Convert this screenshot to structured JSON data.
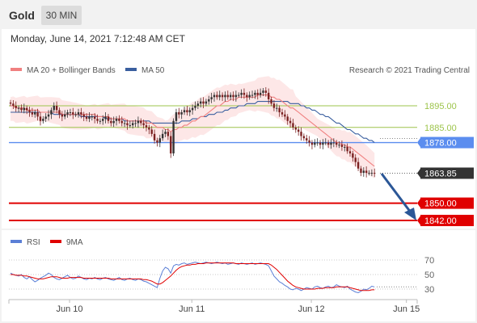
{
  "header": {
    "title": "Gold",
    "timeframe": "30 MIN"
  },
  "timestamp": "Monday, June 14, 2021 7:12:48 AM CET",
  "legend": {
    "bollinger": "MA 20 + Bollinger Bands",
    "ma50": "MA 50",
    "credit": "Research © 2021 Trading Central",
    "rsi": "RSI",
    "ma9": "9MA"
  },
  "colors": {
    "bollinger": "#f08080",
    "band_fill": "#fde3e3",
    "ma50": "#3a5f9f",
    "resistance": "#9dc44b",
    "pivot": "#5b8def",
    "support": "#e00000",
    "current": "#333333",
    "arrow": "#2b5797",
    "candle_up": "#333333",
    "candle_down": "#7b2222"
  },
  "levels": [
    {
      "label": "1895.00",
      "value": 1895.0,
      "kind": "resistance"
    },
    {
      "label": "1885.00",
      "value": 1885.0,
      "kind": "resistance"
    },
    {
      "label": "1878.00",
      "value": 1878.0,
      "kind": "pivot"
    },
    {
      "label": "1863.85",
      "value": 1863.85,
      "kind": "current"
    },
    {
      "label": "1850.00",
      "value": 1850.0,
      "kind": "support"
    },
    {
      "label": "1842.00",
      "value": 1842.0,
      "kind": "support"
    }
  ],
  "chart_data": [
    {
      "type": "line",
      "title": "Gold",
      "ylim": [
        1838,
        1912
      ],
      "x_tick_labels": [
        "Jun 10",
        "Jun 11",
        "Jun 12",
        "Jun 15"
      ],
      "x_ticks": [
        14,
        59,
        103,
        138
      ],
      "x_range": [
        0,
        150
      ],
      "series": [
        {
          "name": "Close",
          "values": [
            1896,
            1895,
            1894,
            1894,
            1893,
            1894,
            1893,
            1892,
            1891,
            1892,
            1890,
            1888,
            1889,
            1890,
            1891,
            1893,
            1895,
            1893,
            1891,
            1890,
            1891,
            1892,
            1892,
            1891,
            1891,
            1892,
            1891,
            1890,
            1889,
            1890,
            1890,
            1889,
            1888,
            1888,
            1889,
            1890,
            1888,
            1887,
            1888,
            1889,
            1888,
            1887,
            1887,
            1886,
            1886,
            1887,
            1887,
            1888,
            1887,
            1886,
            1885,
            1884,
            1882,
            1879,
            1878,
            1880,
            1882,
            1883,
            1881,
            1873,
            1888,
            1892,
            1891,
            1892,
            1893,
            1892,
            1893,
            1894,
            1895,
            1896,
            1897,
            1896,
            1897,
            1898,
            1899,
            1900,
            1899,
            1900,
            1899,
            1900,
            1899,
            1900,
            1899,
            1900,
            1900,
            1901,
            1900,
            1899,
            1900,
            1900,
            1901,
            1900,
            1901,
            1902,
            1901,
            1898,
            1896,
            1894,
            1894,
            1892,
            1891,
            1890,
            1888,
            1887,
            1885,
            1884,
            1883,
            1881,
            1880,
            1879,
            1878,
            1877,
            1878,
            1878,
            1877,
            1878,
            1878,
            1877,
            1878,
            1878,
            1877,
            1877,
            1876,
            1876,
            1874,
            1873,
            1871,
            1869,
            1866,
            1864,
            1865,
            1864,
            1864,
            1864,
            1863.85
          ]
        },
        {
          "name": "MA 20",
          "values": [
            1895,
            1895,
            1894,
            1894,
            1894,
            1894,
            1893,
            1893,
            1893,
            1893,
            1893,
            1892,
            1892,
            1892,
            1892,
            1892,
            1892,
            1892,
            1892,
            1891,
            1891,
            1891,
            1891,
            1891,
            1891,
            1891,
            1891,
            1891,
            1891,
            1891,
            1891,
            1891,
            1890,
            1890,
            1890,
            1890,
            1890,
            1889,
            1889,
            1889,
            1889,
            1889,
            1889,
            1888,
            1888,
            1888,
            1888,
            1888,
            1888,
            1888,
            1887,
            1887,
            1887,
            1886,
            1885,
            1885,
            1885,
            1884,
            1884,
            1883,
            1884,
            1884,
            1885,
            1885,
            1886,
            1886,
            1887,
            1888,
            1888,
            1889,
            1890,
            1890,
            1891,
            1892,
            1893,
            1894,
            1895,
            1895,
            1896,
            1897,
            1897,
            1898,
            1898,
            1898,
            1899,
            1899,
            1899,
            1899,
            1899,
            1899,
            1899,
            1900,
            1900,
            1900,
            1900,
            1900,
            1899,
            1899,
            1898,
            1898,
            1897,
            1896,
            1895,
            1894,
            1894,
            1893,
            1892,
            1891,
            1890,
            1889,
            1888,
            1887,
            1886,
            1885,
            1884,
            1883,
            1882,
            1881,
            1880,
            1879,
            1878,
            1878,
            1877,
            1877,
            1876,
            1876,
            1875,
            1874,
            1873,
            1872,
            1871,
            1870,
            1869,
            1868,
            1867
          ]
        },
        {
          "name": "MA 50",
          "values": [
            1892,
            1892,
            1892,
            1892,
            1892,
            1892,
            1892,
            1892,
            1892,
            1892,
            1892,
            1892,
            1892,
            1892,
            1892,
            1892,
            1891,
            1891,
            1891,
            1891,
            1891,
            1891,
            1891,
            1891,
            1891,
            1891,
            1890,
            1890,
            1890,
            1890,
            1890,
            1890,
            1890,
            1890,
            1890,
            1889,
            1889,
            1889,
            1889,
            1889,
            1889,
            1889,
            1888,
            1888,
            1888,
            1888,
            1888,
            1888,
            1888,
            1888,
            1888,
            1888,
            1887,
            1887,
            1887,
            1887,
            1887,
            1887,
            1887,
            1887,
            1887,
            1887,
            1887,
            1888,
            1888,
            1888,
            1888,
            1889,
            1889,
            1889,
            1890,
            1890,
            1890,
            1891,
            1891,
            1891,
            1892,
            1892,
            1892,
            1893,
            1893,
            1894,
            1894,
            1894,
            1895,
            1895,
            1895,
            1896,
            1896,
            1896,
            1896,
            1897,
            1897,
            1897,
            1897,
            1897,
            1897,
            1897,
            1897,
            1897,
            1897,
            1897,
            1897,
            1896,
            1896,
            1896,
            1896,
            1895,
            1895,
            1894,
            1894,
            1893,
            1893,
            1892,
            1891,
            1891,
            1890,
            1890,
            1889,
            1888,
            1887,
            1887,
            1886,
            1885,
            1884,
            1884,
            1883,
            1882,
            1882,
            1881,
            1880,
            1880,
            1879,
            1879,
            1878
          ]
        }
      ]
    },
    {
      "type": "line",
      "title": "RSI",
      "ylim": [
        20,
        80
      ],
      "y_ticks": [
        70,
        50,
        30
      ],
      "series": [
        {
          "name": "RSI",
          "values": [
            52,
            50,
            49,
            48,
            50,
            46,
            44,
            47,
            43,
            40,
            42,
            45,
            47,
            49,
            52,
            50,
            46,
            44,
            43,
            45,
            47,
            49,
            46,
            44,
            45,
            48,
            46,
            44,
            43,
            45,
            44,
            46,
            44,
            43,
            45,
            46,
            44,
            43,
            42,
            44,
            46,
            43,
            42,
            44,
            45,
            43,
            42,
            44,
            43,
            41,
            40,
            38,
            36,
            34,
            32,
            45,
            55,
            60,
            58,
            52,
            62,
            64,
            63,
            65,
            66,
            64,
            65,
            66,
            67,
            66,
            65,
            66,
            67,
            66,
            65,
            66,
            67,
            66,
            65,
            66,
            64,
            65,
            66,
            65,
            64,
            66,
            65,
            64,
            65,
            66,
            64,
            65,
            66,
            65,
            64,
            62,
            55,
            48,
            44,
            40,
            38,
            35,
            33,
            30,
            29,
            31,
            30,
            28,
            30,
            32,
            31,
            30,
            33,
            34,
            32,
            31,
            33,
            34,
            32,
            33,
            36,
            34,
            33,
            32,
            34,
            30,
            28,
            26,
            25,
            27,
            30,
            29,
            31,
            34,
            33
          ]
        },
        {
          "name": "9MA",
          "values": [
            50,
            50,
            49,
            49,
            49,
            48,
            48,
            47,
            46,
            45,
            44,
            44,
            44,
            45,
            46,
            47,
            47,
            47,
            46,
            45,
            45,
            45,
            46,
            46,
            46,
            46,
            46,
            45,
            45,
            45,
            45,
            45,
            45,
            45,
            45,
            45,
            45,
            44,
            44,
            44,
            44,
            44,
            44,
            44,
            44,
            44,
            44,
            44,
            44,
            43,
            43,
            42,
            41,
            39,
            37,
            37,
            39,
            42,
            45,
            48,
            52,
            56,
            59,
            61,
            62,
            63,
            63,
            64,
            64,
            65,
            65,
            65,
            66,
            66,
            66,
            66,
            66,
            66,
            66,
            66,
            66,
            66,
            66,
            65,
            65,
            65,
            65,
            65,
            65,
            65,
            65,
            65,
            65,
            65,
            65,
            65,
            63,
            60,
            57,
            53,
            49,
            45,
            41,
            38,
            35,
            33,
            32,
            31,
            30,
            30,
            30,
            30,
            30,
            31,
            31,
            31,
            32,
            32,
            32,
            32,
            33,
            33,
            33,
            33,
            33,
            32,
            31,
            30,
            29,
            28,
            28,
            28,
            28,
            29,
            29
          ]
        }
      ]
    }
  ]
}
